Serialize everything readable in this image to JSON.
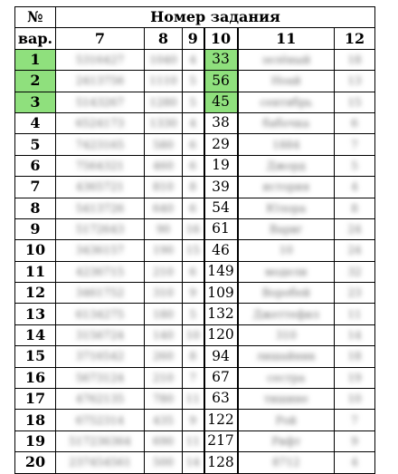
{
  "header": {
    "num_label": "№",
    "var_label": "вар.",
    "task_label": "Номер задания",
    "columns": [
      "7",
      "8",
      "9",
      "10",
      "11",
      "12"
    ]
  },
  "colors": {
    "highlight": "#8fe07d"
  },
  "rows": [
    {
      "v": "1",
      "c7": "5316427",
      "c8": "1040",
      "c9": "4",
      "c10": "33",
      "c11": "зелёный",
      "c12": "18",
      "hl": true
    },
    {
      "v": "2",
      "c7": "2413756",
      "c8": "1110",
      "c9": "5",
      "c10": "56",
      "c11": "Ноай",
      "c12": "13",
      "hl": true
    },
    {
      "v": "3",
      "c7": "5143267",
      "c8": "1280",
      "c9": "5",
      "c10": "45",
      "c11": "сентябрь",
      "c12": "15",
      "hl": true
    },
    {
      "v": "4",
      "c7": "6524173",
      "c8": "1330",
      "c9": "4",
      "c10": "38",
      "c11": "бабочка",
      "c12": "6",
      "hl": false
    },
    {
      "v": "5",
      "c7": "7423165",
      "c8": "580",
      "c9": "6",
      "c10": "29",
      "c11": "1884",
      "c12": "7",
      "hl": false
    },
    {
      "v": "6",
      "c7": "7564321",
      "c8": "460",
      "c9": "6",
      "c10": "19",
      "c11": "Джорд",
      "c12": "5",
      "hl": false
    },
    {
      "v": "7",
      "c7": "4365721",
      "c8": "810",
      "c9": "8",
      "c10": "39",
      "c11": "история",
      "c12": "4",
      "hl": false
    },
    {
      "v": "8",
      "c7": "5413726",
      "c8": "640",
      "c9": "6",
      "c10": "54",
      "c11": "Юлора",
      "c12": "8",
      "hl": false
    },
    {
      "v": "9",
      "c7": "5172643",
      "c8": "90",
      "c9": "16",
      "c10": "61",
      "c11": "Варвг",
      "c12": "24",
      "hl": false
    },
    {
      "v": "10",
      "c7": "3436157",
      "c8": "190",
      "c9": "15",
      "c10": "46",
      "c11": "10",
      "c12": "24",
      "hl": false
    },
    {
      "v": "11",
      "c7": "4236715",
      "c8": "210",
      "c9": "6",
      "c10": "149",
      "c11": "модели",
      "c12": "32",
      "hl": false
    },
    {
      "v": "12",
      "c7": "3461752",
      "c8": "310",
      "c9": "9",
      "c10": "109",
      "c11": "Воробей",
      "c12": "23",
      "hl": false
    },
    {
      "v": "13",
      "c7": "6134275",
      "c8": "180",
      "c9": "5",
      "c10": "132",
      "c11": "Джеттефил",
      "c12": "11",
      "hl": false
    },
    {
      "v": "14",
      "c7": "3156724",
      "c8": "140",
      "c9": "10",
      "c10": "120",
      "c11": "310",
      "c12": "14",
      "hl": false
    },
    {
      "v": "15",
      "c7": "3716542",
      "c8": "260",
      "c9": "8",
      "c10": "94",
      "c11": "лишайник",
      "c12": "18",
      "hl": false
    },
    {
      "v": "16",
      "c7": "5673124",
      "c8": "210",
      "c9": "7",
      "c10": "67",
      "c11": "сестра",
      "c12": "19",
      "hl": false
    },
    {
      "v": "17",
      "c7": "4762135",
      "c8": "780",
      "c9": "11",
      "c10": "63",
      "c11": "тишине",
      "c12": "10",
      "hl": false
    },
    {
      "v": "18",
      "c7": "6752314",
      "c8": "435",
      "c9": "9",
      "c10": "122",
      "c11": "Рой",
      "c12": "7",
      "hl": false
    },
    {
      "v": "19",
      "c7": "517236364",
      "c8": "690",
      "c9": "11",
      "c10": "217",
      "c11": "Рифт",
      "c12": "9",
      "hl": false
    },
    {
      "v": "20",
      "c7": "237454561",
      "c8": "500",
      "c9": "14",
      "c10": "128",
      "c11": "8712",
      "c12": "4",
      "hl": false
    }
  ]
}
